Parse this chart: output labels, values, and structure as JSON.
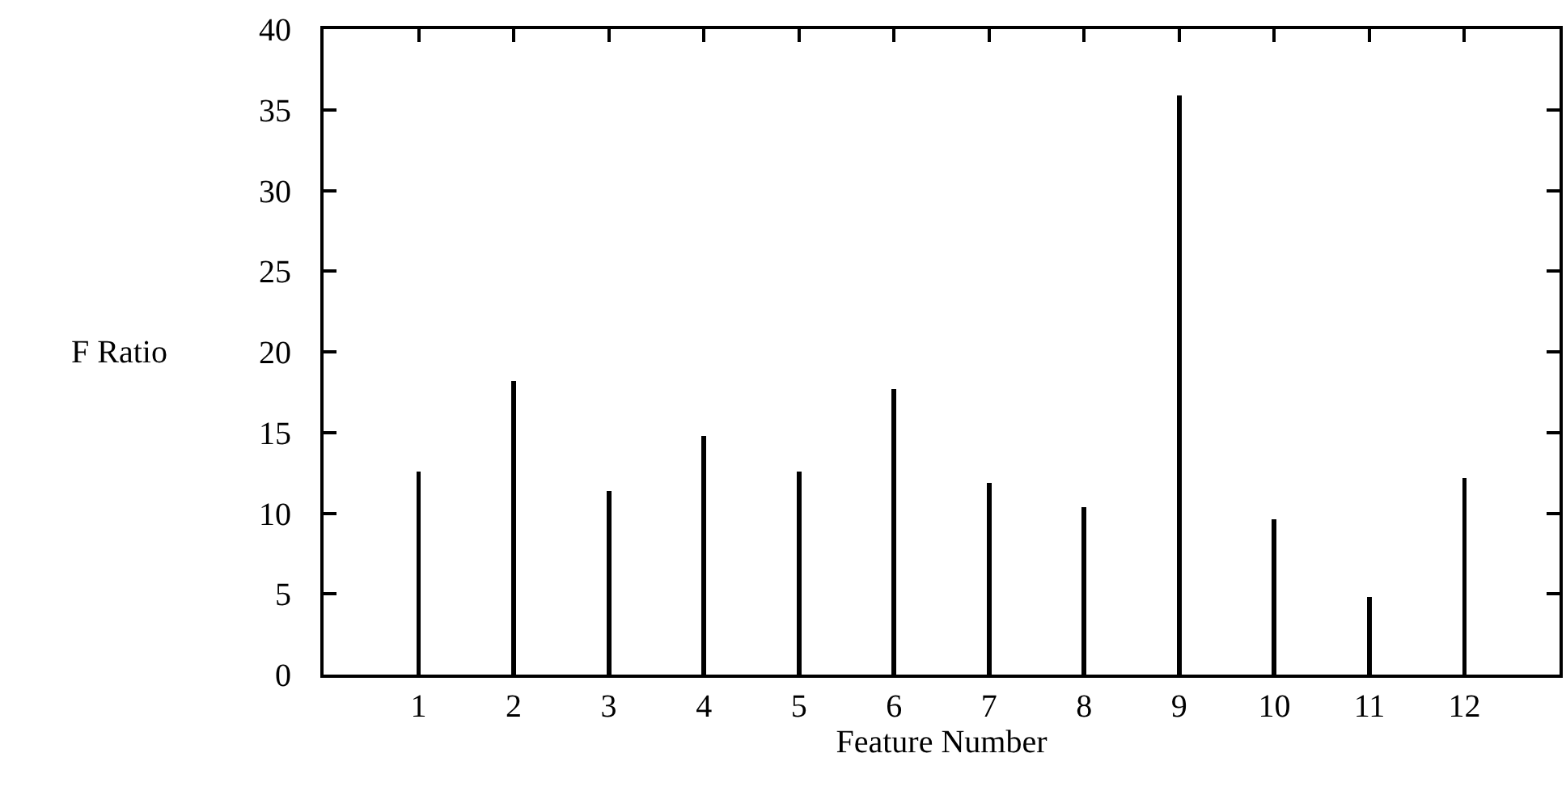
{
  "chart_data": {
    "type": "bar",
    "xlabel": "Feature Number",
    "ylabel": "F Ratio",
    "x": [
      1,
      2,
      3,
      4,
      5,
      6,
      7,
      8,
      9,
      10,
      11,
      12
    ],
    "values": [
      12.6,
      18.2,
      11.4,
      14.8,
      12.6,
      17.7,
      11.9,
      10.4,
      35.9,
      9.6,
      4.8,
      12.2
    ],
    "color": "#000000",
    "xlim": [
      0,
      13
    ],
    "xticks": [
      1,
      2,
      3,
      4,
      5,
      6,
      7,
      8,
      9,
      10,
      11,
      12
    ],
    "ylim": [
      0,
      40
    ],
    "yticks": [
      0,
      5,
      10,
      15,
      20,
      25,
      30,
      35,
      40
    ]
  }
}
